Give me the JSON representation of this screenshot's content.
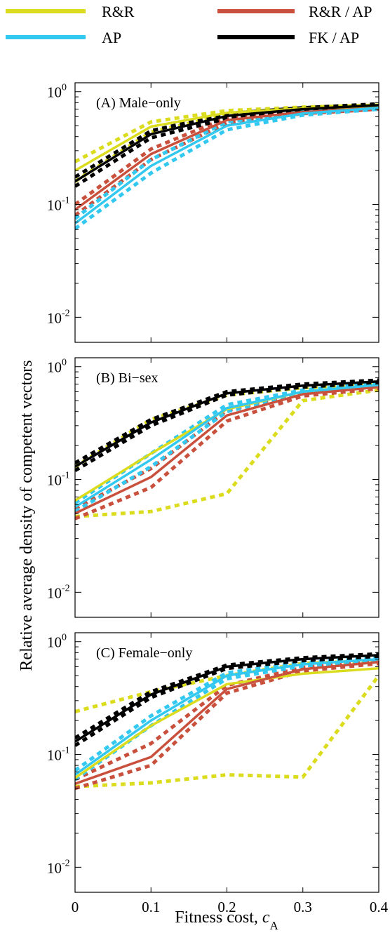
{
  "legend": {
    "items": [
      {
        "label": "R&R",
        "color": "#dcdc1e"
      },
      {
        "label": "R&R / AP",
        "color": "#c8503c"
      },
      {
        "label": "AP",
        "color": "#32c8f0"
      },
      {
        "label": "FK / AP",
        "color": "#000000"
      }
    ]
  },
  "axes": {
    "ylabel": "Relative average density of competent vectors",
    "xlabel_main": "Fitness cost,",
    "xlabel_symbol": "c",
    "xlabel_sub": "A",
    "y_tick_base": "10",
    "y_tick_exps": [
      "0",
      "-1",
      "-2"
    ],
    "x_ticks": [
      "0",
      "0.1",
      "0.2",
      "0.3",
      "0.4"
    ]
  },
  "chart_data": [
    {
      "type": "line",
      "title": "(A) Male−only",
      "x": [
        0,
        0.1,
        0.2,
        0.3,
        0.4
      ],
      "xlim": [
        0,
        0.4
      ],
      "ylim": [
        0.006,
        1.2
      ],
      "yscale": "log",
      "xlabel": "Fitness cost, c_A",
      "ylabel": "Relative average density of competent vectors",
      "series": [
        {
          "name": "R&R",
          "color": "#dcdc1e",
          "values": [
            0.2,
            0.49,
            0.65,
            0.71,
            0.74
          ],
          "bounds": [
            [
              0.16,
              0.44,
              0.62,
              0.69,
              0.72
            ],
            [
              0.24,
              0.54,
              0.68,
              0.73,
              0.76
            ]
          ]
        },
        {
          "name": "AP",
          "color": "#32c8f0",
          "values": [
            0.068,
            0.22,
            0.5,
            0.64,
            0.72
          ],
          "bounds": [
            [
              0.061,
              0.19,
              0.46,
              0.62,
              0.7
            ],
            [
              0.075,
              0.25,
              0.54,
              0.66,
              0.74
            ]
          ]
        },
        {
          "name": "R&R / AP",
          "color": "#c8503c",
          "values": [
            0.09,
            0.28,
            0.56,
            0.66,
            0.72
          ],
          "bounds": [
            [
              0.08,
              0.25,
              0.53,
              0.64,
              0.7
            ],
            [
              0.1,
              0.31,
              0.59,
              0.68,
              0.74
            ]
          ]
        },
        {
          "name": "FK / AP",
          "color": "#000000",
          "values": [
            0.16,
            0.42,
            0.61,
            0.7,
            0.76
          ],
          "bounds": [
            [
              0.145,
              0.39,
              0.58,
              0.68,
              0.74
            ],
            [
              0.175,
              0.45,
              0.64,
              0.72,
              0.78
            ]
          ]
        }
      ]
    },
    {
      "type": "line",
      "title": "(B) Bi−sex",
      "x": [
        0,
        0.1,
        0.2,
        0.3,
        0.4
      ],
      "xlim": [
        0,
        0.4
      ],
      "ylim": [
        0.006,
        1.2
      ],
      "yscale": "log",
      "xlabel": "Fitness cost, c_A",
      "ylabel": "Relative average density of competent vectors",
      "series": [
        {
          "name": "R&R",
          "color": "#dcdc1e",
          "values": [
            0.065,
            0.17,
            0.42,
            0.6,
            0.68
          ],
          "bounds": [
            [
              0.047,
              0.052,
              0.075,
              0.5,
              0.62
            ],
            [
              0.13,
              0.34,
              0.56,
              0.65,
              0.71
            ]
          ]
        },
        {
          "name": "AP",
          "color": "#32c8f0",
          "values": [
            0.057,
            0.15,
            0.43,
            0.6,
            0.69
          ],
          "bounds": [
            [
              0.052,
              0.13,
              0.4,
              0.58,
              0.67
            ],
            [
              0.062,
              0.17,
              0.46,
              0.62,
              0.71
            ]
          ]
        },
        {
          "name": "R&R / AP",
          "color": "#c8503c",
          "values": [
            0.05,
            0.105,
            0.37,
            0.57,
            0.66
          ],
          "bounds": [
            [
              0.045,
              0.085,
              0.33,
              0.55,
              0.64
            ],
            [
              0.055,
              0.125,
              0.41,
              0.59,
              0.68
            ]
          ]
        },
        {
          "name": "FK / AP",
          "color": "#000000",
          "values": [
            0.13,
            0.32,
            0.58,
            0.68,
            0.74
          ],
          "bounds": [
            [
              0.12,
              0.3,
              0.56,
              0.66,
              0.72
            ],
            [
              0.14,
              0.34,
              0.6,
              0.7,
              0.76
            ]
          ]
        }
      ]
    },
    {
      "type": "line",
      "title": "(C) Female−only",
      "x": [
        0,
        0.1,
        0.2,
        0.3,
        0.4
      ],
      "xlim": [
        0,
        0.4
      ],
      "ylim": [
        0.006,
        1.2
      ],
      "yscale": "log",
      "xlabel": "Fitness cost, c_A",
      "ylabel": "Relative average density of competent vectors",
      "series": [
        {
          "name": "R&R",
          "color": "#dcdc1e",
          "values": [
            0.062,
            0.18,
            0.42,
            0.52,
            0.58
          ],
          "bounds": [
            [
              0.052,
              0.056,
              0.066,
              0.063,
              0.5
            ],
            [
              0.24,
              0.36,
              0.5,
              0.64,
              0.68
            ]
          ]
        },
        {
          "name": "AP",
          "color": "#32c8f0",
          "values": [
            0.066,
            0.2,
            0.5,
            0.63,
            0.7
          ],
          "bounds": [
            [
              0.06,
              0.18,
              0.47,
              0.61,
              0.68
            ],
            [
              0.072,
              0.22,
              0.53,
              0.65,
              0.72
            ]
          ]
        },
        {
          "name": "R&R / AP",
          "color": "#c8503c",
          "values": [
            0.055,
            0.095,
            0.38,
            0.57,
            0.66
          ],
          "bounds": [
            [
              0.05,
              0.08,
              0.35,
              0.55,
              0.64
            ],
            [
              0.06,
              0.125,
              0.41,
              0.59,
              0.68
            ]
          ]
        },
        {
          "name": "FK / AP",
          "color": "#000000",
          "values": [
            0.13,
            0.34,
            0.6,
            0.7,
            0.76
          ],
          "bounds": [
            [
              0.12,
              0.32,
              0.58,
              0.68,
              0.74
            ],
            [
              0.14,
              0.36,
              0.62,
              0.72,
              0.78
            ]
          ]
        }
      ]
    }
  ]
}
